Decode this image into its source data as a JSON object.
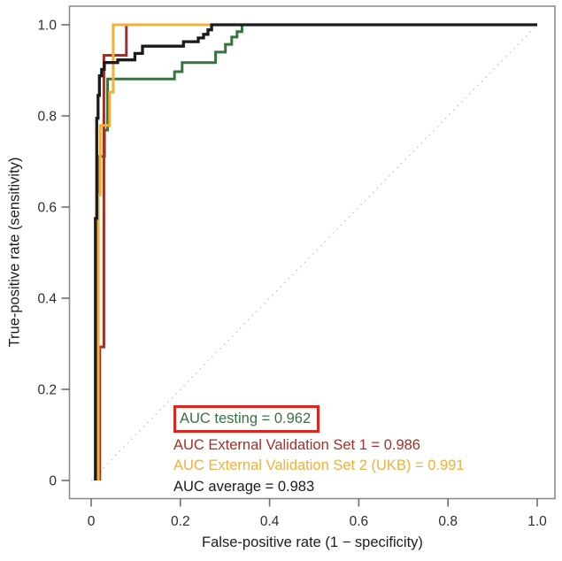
{
  "chart_data": {
    "type": "line",
    "subtype": "roc-curves",
    "title": "",
    "xlabel": "False-positive rate (1 − specificity)",
    "ylabel": "True-positive rate (sensitivity)",
    "xlim": [
      0,
      1.0
    ],
    "ylim": [
      0,
      1.0
    ],
    "grid": false,
    "xticks": {
      "values": [
        0,
        0.2,
        0.4,
        0.6,
        0.8,
        1.0
      ],
      "labels": [
        "0",
        "0.2",
        "0.4",
        "0.6",
        "0.8",
        "1.0"
      ]
    },
    "yticks": {
      "values": [
        0,
        0.2,
        0.4,
        0.6,
        0.8,
        1.0
      ],
      "labels": [
        "0",
        "0.2",
        "0.4",
        "0.6",
        "0.8",
        "1.0"
      ]
    },
    "diagonal_reference": {
      "style": "dotted",
      "color": "#c2c2c2",
      "from": [
        0,
        0
      ],
      "to": [
        1,
        1
      ]
    },
    "frame_color": "#8c8c8c",
    "tick_color": "#6e6e6e",
    "legend": {
      "position": "inside-bottom-center",
      "highlight_box_color": "#e0231c",
      "highlighted_item": "testing"
    },
    "series": [
      {
        "name": "testing",
        "legend_label": "AUC testing = 0.962",
        "auc": 0.962,
        "color": "#35743e",
        "stroke_width": 3,
        "points": [
          [
            0.013,
            0
          ],
          [
            0.013,
            0.627
          ],
          [
            0.019,
            0.627
          ],
          [
            0.019,
            0.711
          ],
          [
            0.03,
            0.711
          ],
          [
            0.03,
            0.769
          ],
          [
            0.037,
            0.769
          ],
          [
            0.037,
            0.881
          ],
          [
            0.187,
            0.881
          ],
          [
            0.187,
            0.897
          ],
          [
            0.204,
            0.897
          ],
          [
            0.204,
            0.917
          ],
          [
            0.279,
            0.917
          ],
          [
            0.279,
            0.94
          ],
          [
            0.301,
            0.94
          ],
          [
            0.301,
            0.957
          ],
          [
            0.315,
            0.957
          ],
          [
            0.315,
            0.973
          ],
          [
            0.327,
            0.973
          ],
          [
            0.327,
            0.985
          ],
          [
            0.338,
            0.985
          ],
          [
            0.338,
            1.0
          ],
          [
            1.0,
            1.0
          ]
        ]
      },
      {
        "name": "external-validation-set-1",
        "legend_label": "AUC External Validation Set 1 = 0.986",
        "auc": 0.986,
        "color": "#a33026",
        "stroke_width": 3,
        "points": [
          [
            0.0195,
            0
          ],
          [
            0.0195,
            0.293
          ],
          [
            0.0285,
            0.293
          ],
          [
            0.0285,
            0.933
          ],
          [
            0.079,
            0.933
          ],
          [
            0.079,
            1.0
          ],
          [
            1.0,
            1.0
          ]
        ]
      },
      {
        "name": "external-validation-set-2-ukb",
        "legend_label": "AUC External Validation Set 2 (UKB) = 0.991",
        "auc": 0.991,
        "color": "#f0b03a",
        "stroke_width": 3,
        "points": [
          [
            0.016,
            0
          ],
          [
            0.016,
            0.627
          ],
          [
            0.0205,
            0.627
          ],
          [
            0.0205,
            0.779
          ],
          [
            0.0415,
            0.779
          ],
          [
            0.0415,
            0.852
          ],
          [
            0.0495,
            0.852
          ],
          [
            0.0495,
            1.0
          ],
          [
            1.0,
            1.0
          ]
        ]
      },
      {
        "name": "average",
        "legend_label": "AUC average = 0.983",
        "auc": 0.983,
        "color": "#1b1b1b",
        "stroke_width": 3.3,
        "points": [
          [
            0.0095,
            0
          ],
          [
            0.0095,
            0.575
          ],
          [
            0.0125,
            0.575
          ],
          [
            0.0125,
            0.795
          ],
          [
            0.0155,
            0.795
          ],
          [
            0.0155,
            0.845
          ],
          [
            0.0185,
            0.845
          ],
          [
            0.0185,
            0.888
          ],
          [
            0.0235,
            0.888
          ],
          [
            0.0235,
            0.902
          ],
          [
            0.0295,
            0.902
          ],
          [
            0.0295,
            0.917
          ],
          [
            0.0595,
            0.917
          ],
          [
            0.0595,
            0.923
          ],
          [
            0.098,
            0.923
          ],
          [
            0.098,
            0.937
          ],
          [
            0.115,
            0.937
          ],
          [
            0.115,
            0.953
          ],
          [
            0.207,
            0.953
          ],
          [
            0.207,
            0.963
          ],
          [
            0.24,
            0.963
          ],
          [
            0.24,
            0.971
          ],
          [
            0.252,
            0.971
          ],
          [
            0.252,
            0.979
          ],
          [
            0.262,
            0.979
          ],
          [
            0.262,
            0.989
          ],
          [
            0.27,
            0.989
          ],
          [
            0.27,
            1.0
          ],
          [
            1.0,
            1.0
          ]
        ]
      }
    ]
  }
}
